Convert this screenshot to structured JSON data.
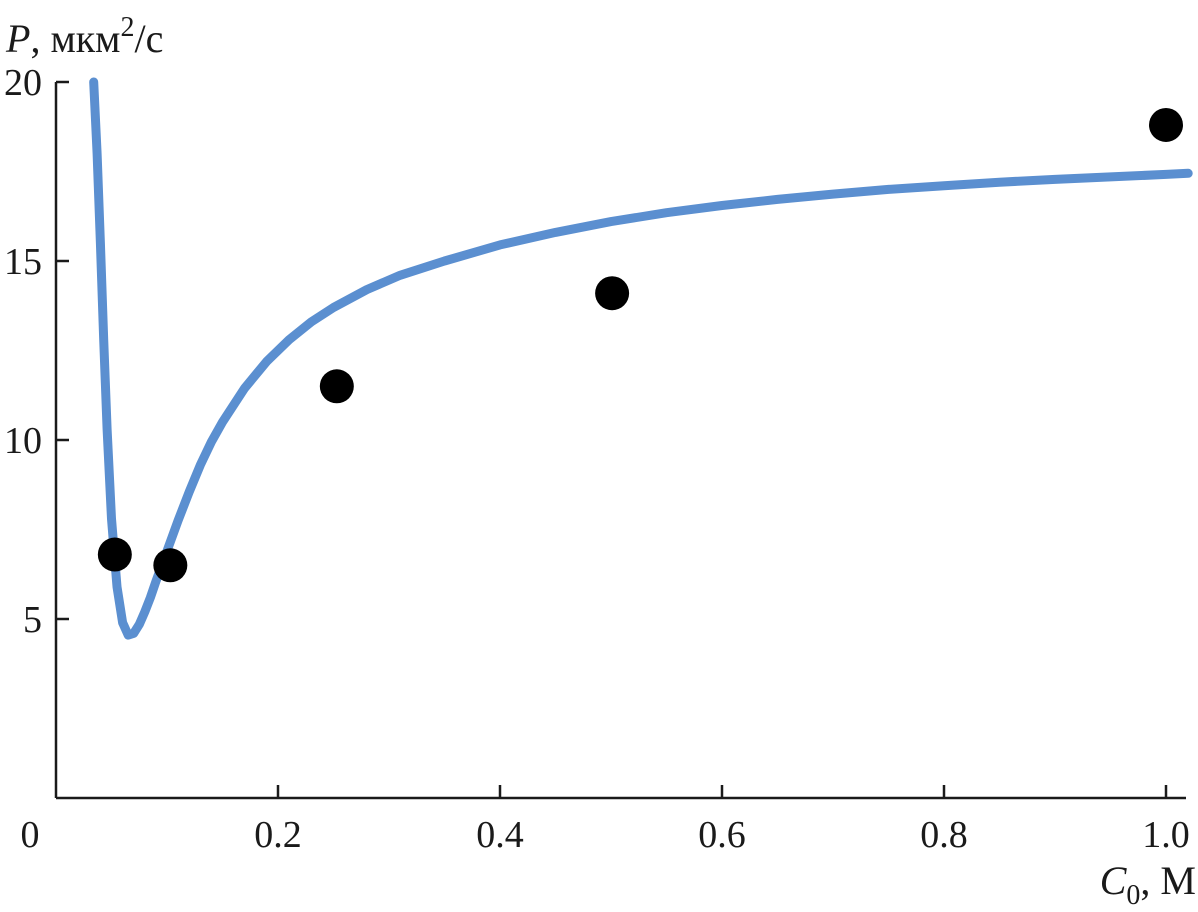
{
  "chart_data": {
    "type": "scatter",
    "ylabel": {
      "var": "P",
      "unit_pre": ", мкм",
      "unit_sup": "2",
      "unit_post": "/с"
    },
    "xlabel": {
      "var": "C",
      "sub": "0",
      "unit": ", М"
    },
    "xlim": [
      0,
      1.0
    ],
    "ylim": [
      0,
      20
    ],
    "x_ticks": [
      {
        "value": 0,
        "label": "0"
      },
      {
        "value": 0.2,
        "label": "0.2"
      },
      {
        "value": 0.4,
        "label": "0.4"
      },
      {
        "value": 0.6,
        "label": "0.6"
      },
      {
        "value": 0.8,
        "label": "0.8"
      },
      {
        "value": 1.0,
        "label": "1.0"
      }
    ],
    "y_ticks": [
      {
        "value": 5,
        "label": "5"
      },
      {
        "value": 10,
        "label": "10"
      },
      {
        "value": 15,
        "label": "15"
      },
      {
        "value": 20,
        "label": "20"
      }
    ],
    "grid": false,
    "series": [
      {
        "kind": "points",
        "color": "#000000",
        "x": [
          0.053,
          0.103,
          0.253,
          0.501,
          1.0
        ],
        "y": [
          6.8,
          6.5,
          11.5,
          14.1,
          18.8
        ]
      },
      {
        "kind": "line",
        "color": "#5b8fd0",
        "x": [
          0.034,
          0.037,
          0.04,
          0.043,
          0.046,
          0.05,
          0.055,
          0.06,
          0.065,
          0.07,
          0.075,
          0.08,
          0.085,
          0.09,
          0.1,
          0.11,
          0.12,
          0.13,
          0.14,
          0.15,
          0.17,
          0.19,
          0.21,
          0.23,
          0.25,
          0.28,
          0.31,
          0.35,
          0.4,
          0.45,
          0.5,
          0.55,
          0.6,
          0.65,
          0.7,
          0.75,
          0.8,
          0.85,
          0.9,
          0.95,
          1.0,
          1.02
        ],
        "y": [
          20.0,
          18.0,
          15.5,
          12.8,
          10.3,
          7.8,
          5.9,
          4.9,
          4.55,
          4.6,
          4.85,
          5.2,
          5.6,
          6.05,
          6.9,
          7.75,
          8.55,
          9.3,
          9.95,
          10.5,
          11.45,
          12.2,
          12.8,
          13.3,
          13.7,
          14.2,
          14.6,
          15.0,
          15.45,
          15.8,
          16.1,
          16.35,
          16.55,
          16.72,
          16.87,
          17.0,
          17.1,
          17.2,
          17.28,
          17.35,
          17.42,
          17.45
        ]
      }
    ]
  }
}
